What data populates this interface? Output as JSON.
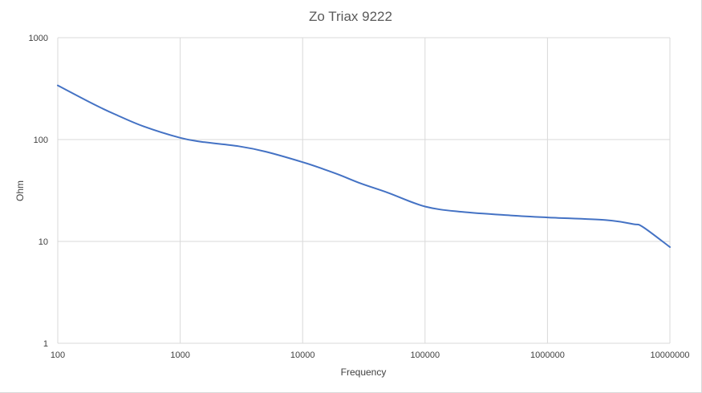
{
  "chart_data": {
    "type": "line",
    "title": "Zo Triax 9222",
    "xlabel": "Frequency",
    "ylabel": "Ohm",
    "x_scale": "log",
    "y_scale": "log",
    "xlim": [
      100,
      10000000
    ],
    "ylim": [
      1,
      1000
    ],
    "x_ticks": [
      "100",
      "1000",
      "10000",
      "100000",
      "1000000",
      "10000000"
    ],
    "y_ticks": [
      "1",
      "10",
      "100",
      "1000"
    ],
    "grid": true,
    "legend": "none",
    "series": [
      {
        "color": "#4472c4",
        "x": [
          100,
          200,
          300,
          500,
          1000,
          1500,
          3000,
          5000,
          10000,
          15000,
          20000,
          30000,
          50000,
          100000,
          200000,
          500000,
          1000000,
          3000000,
          5000000,
          6000000,
          10000000
        ],
        "y": [
          340,
          220,
          175,
          135,
          104,
          95,
          86,
          76,
          60,
          51,
          45,
          37,
          30,
          22,
          19.5,
          18,
          17.2,
          16.2,
          14.8,
          13.9,
          8.8
        ]
      }
    ]
  }
}
